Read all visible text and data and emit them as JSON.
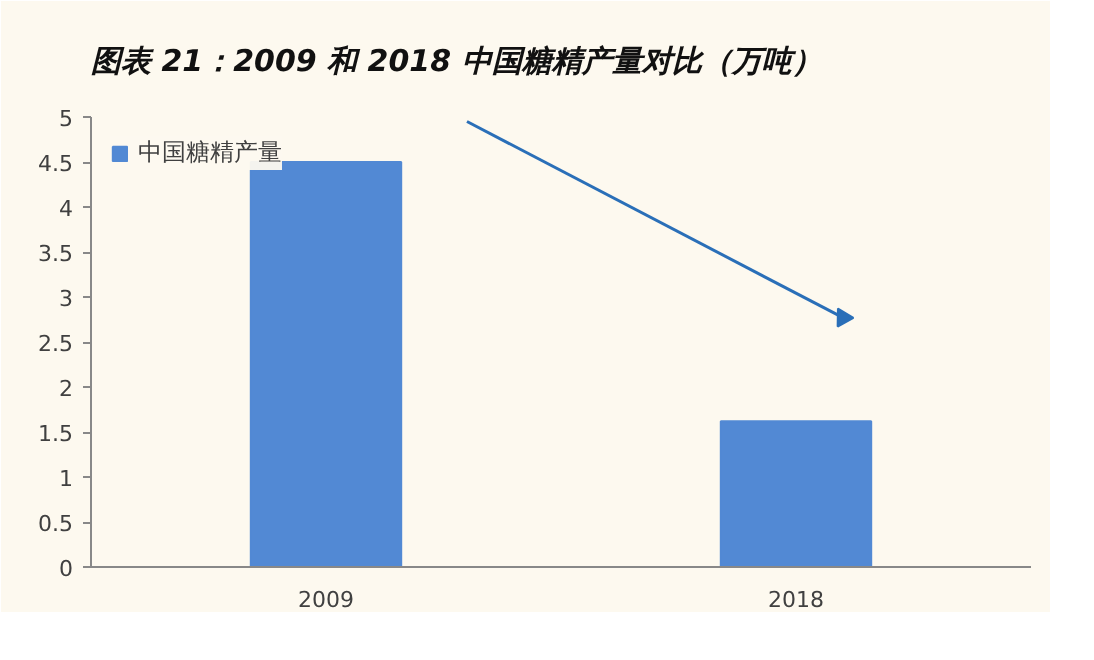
{
  "chart_data": {
    "type": "bar",
    "title": "图表 21：2009 和 2018 中国糖精产量对比（万吨）",
    "categories": [
      "2009",
      "2018"
    ],
    "series": [
      {
        "name": "中国糖精产量",
        "color": "#5289d4",
        "values": [
          4.5,
          1.62
        ]
      }
    ],
    "ylim": [
      0,
      5
    ],
    "yticks": [
      0,
      0.5,
      1,
      1.5,
      2,
      2.5,
      3,
      3.5,
      4,
      4.5,
      5
    ],
    "grid": false,
    "legend": "top left"
  }
}
